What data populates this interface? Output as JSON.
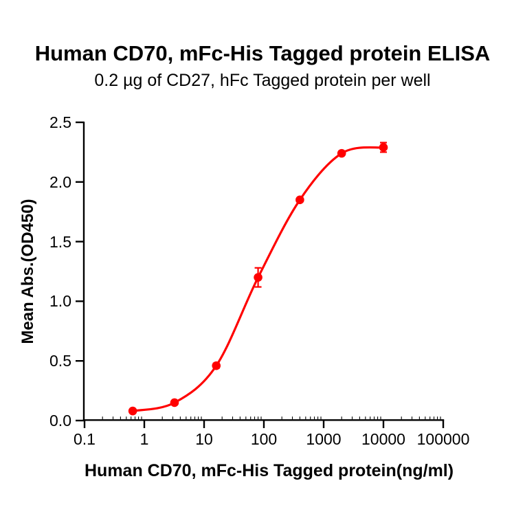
{
  "chart_data": {
    "type": "scatter",
    "title": "Human CD70, mFc-His Tagged protein ELISA",
    "subtitle": "0.2 µg of CD27, hFc Tagged protein per well",
    "xlabel": "Human CD70, mFc-His Tagged protein(ng/ml)",
    "ylabel": "Mean Abs.(OD450)",
    "x_scale": "log10",
    "xlim": [
      0.1,
      100000
    ],
    "ylim": [
      0,
      2.5
    ],
    "grid": false,
    "legend": false,
    "x_ticks": [
      {
        "v": 0.1,
        "label": "0.1"
      },
      {
        "v": 1,
        "label": "1"
      },
      {
        "v": 10,
        "label": "10"
      },
      {
        "v": 100,
        "label": "100"
      },
      {
        "v": 1000,
        "label": "1000"
      },
      {
        "v": 10000,
        "label": "10000"
      },
      {
        "v": 100000,
        "label": "100000"
      }
    ],
    "y_ticks": [
      {
        "v": 0,
        "label": "0.0"
      },
      {
        "v": 0.5,
        "label": "0.5"
      },
      {
        "v": 1,
        "label": "1.0"
      },
      {
        "v": 1.5,
        "label": "1.5"
      },
      {
        "v": 2,
        "label": "2.0"
      },
      {
        "v": 2.5,
        "label": "2.5"
      }
    ],
    "series": [
      {
        "color": "#FF0000",
        "marker": "circle",
        "curve": "4PL-sigmoid",
        "points": [
          {
            "x": 0.64,
            "y": 0.08,
            "err": 0.01
          },
          {
            "x": 3.2,
            "y": 0.15,
            "err": 0.01
          },
          {
            "x": 16,
            "y": 0.46,
            "err": 0.02
          },
          {
            "x": 80,
            "y": 1.2,
            "err": 0.08
          },
          {
            "x": 400,
            "y": 1.85,
            "err": 0.015
          },
          {
            "x": 2000,
            "y": 2.24,
            "err": 0.015
          },
          {
            "x": 10000,
            "y": 2.29,
            "err": 0.04
          }
        ]
      }
    ],
    "colors": {
      "axis": "#000000",
      "text": "#000000",
      "series": "#FF0000",
      "background": "#ffffff"
    }
  }
}
